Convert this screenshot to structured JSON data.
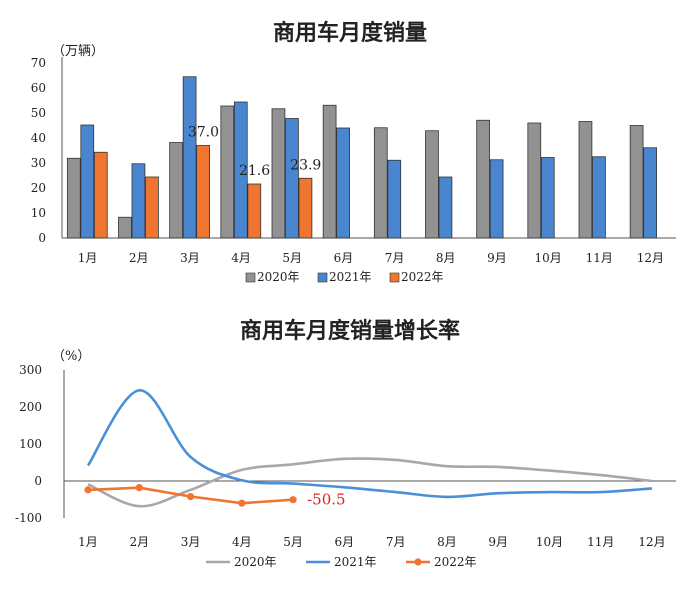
{
  "chart_data": [
    {
      "type": "bar",
      "title": "商用车月度销量",
      "ylabel": "（万辆）",
      "xlabel": "",
      "categories": [
        "1月",
        "2月",
        "3月",
        "4月",
        "5月",
        "6月",
        "7月",
        "8月",
        "9月",
        "10月",
        "11月",
        "12月"
      ],
      "ylim": [
        0,
        70
      ],
      "yticks": [
        "0",
        "10",
        "20",
        "30",
        "40",
        "50",
        "60",
        "70"
      ],
      "grid": false,
      "legend_position": "bottom",
      "series": [
        {
          "name": "2020年",
          "color": "#929292",
          "values": [
            31.9,
            8.3,
            38.2,
            52.8,
            51.7,
            53.1,
            44.1,
            42.9,
            47.1,
            46.0,
            46.6,
            45.0
          ]
        },
        {
          "name": "2021年",
          "color": "#4a86d0",
          "values": [
            45.2,
            29.7,
            64.5,
            54.4,
            47.8,
            44.0,
            31.1,
            24.4,
            31.3,
            32.2,
            32.5,
            36.1
          ]
        },
        {
          "name": "2022年",
          "color": "#ef7530",
          "values": [
            34.3,
            24.4,
            37.0,
            21.6,
            23.9,
            null,
            null,
            null,
            null,
            null,
            null,
            null
          ]
        }
      ],
      "data_labels": [
        {
          "category": "3月",
          "series": "2022年",
          "text": "37.0"
        },
        {
          "category": "4月",
          "series": "2022年",
          "text": "21.6"
        },
        {
          "category": "5月",
          "series": "2022年",
          "text": "23.9"
        }
      ]
    },
    {
      "type": "line",
      "title": "商用车月度销量增长率",
      "ylabel": "（%）",
      "xlabel": "",
      "categories": [
        "1月",
        "2月",
        "3月",
        "4月",
        "5月",
        "6月",
        "7月",
        "8月",
        "9月",
        "10月",
        "11月",
        "12月"
      ],
      "ylim": [
        -100,
        300
      ],
      "yticks": [
        "300",
        "200",
        "100",
        "0",
        "-100"
      ],
      "grid": false,
      "legend_position": "bottom",
      "series": [
        {
          "name": "2020年",
          "color": "#a8a8a8",
          "marker": "none",
          "values": [
            -9,
            -68,
            -24,
            30,
            45,
            60,
            57,
            40,
            38,
            28,
            16,
            0
          ]
        },
        {
          "name": "2021年",
          "color": "#4a90d9",
          "marker": "none",
          "values": [
            42,
            245,
            65,
            2,
            -7,
            -17,
            -30,
            -43,
            -33,
            -30,
            -30,
            -20
          ]
        },
        {
          "name": "2022年",
          "color": "#ef7530",
          "marker": "circle",
          "values": [
            -24,
            -18,
            -42,
            -60,
            -50.5,
            null,
            null,
            null,
            null,
            null,
            null,
            null
          ]
        }
      ],
      "data_labels": [
        {
          "category": "5月",
          "series": "2022年",
          "text": "-50.5",
          "color": "#e02020"
        }
      ]
    }
  ]
}
